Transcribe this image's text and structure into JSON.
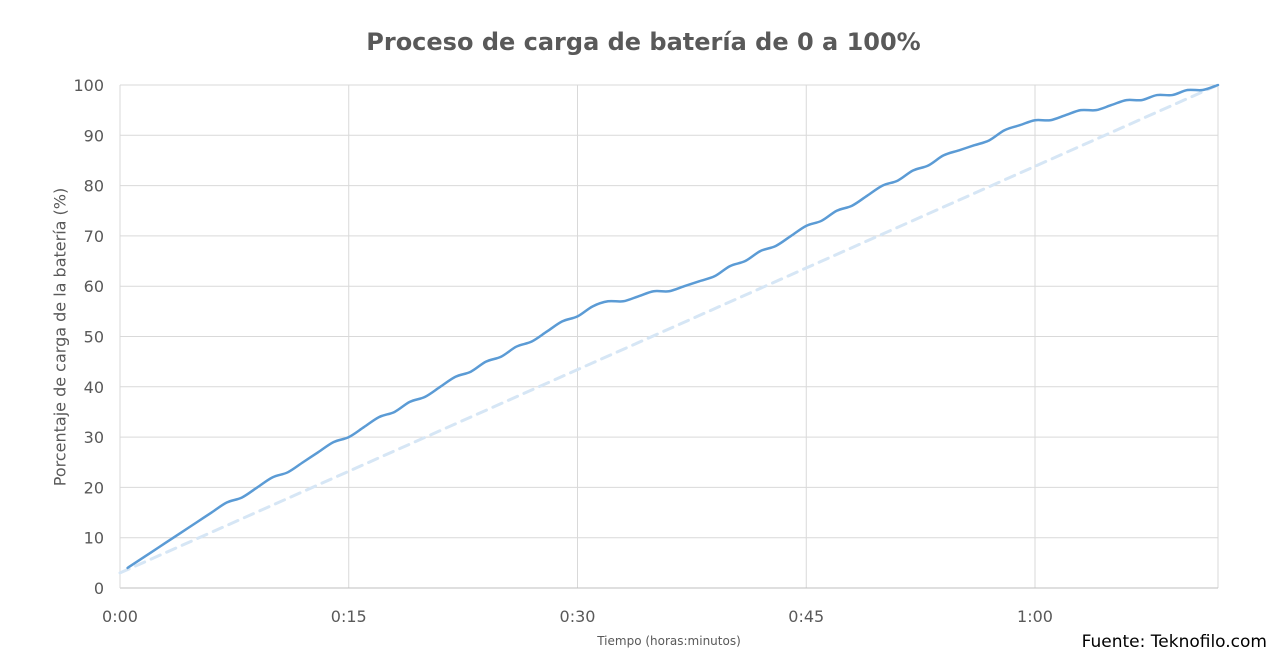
{
  "chart_data": {
    "type": "line",
    "title": "Proceso de carga de batería de 0 a 100%",
    "xlabel": "Tiempo (horas:minutos)",
    "ylabel": "Porcentaje de carga de la batería (%)",
    "x_unit": "minutes",
    "xlim": [
      0,
      72
    ],
    "ylim": [
      0,
      100
    ],
    "x_ticks": [
      {
        "value": 0,
        "label": "0:00"
      },
      {
        "value": 15,
        "label": "0:15"
      },
      {
        "value": 30,
        "label": "0:30"
      },
      {
        "value": 45,
        "label": "0:45"
      },
      {
        "value": 60,
        "label": "1:00"
      }
    ],
    "y_ticks": [
      0,
      10,
      20,
      30,
      40,
      50,
      60,
      70,
      80,
      90,
      100
    ],
    "grid": true,
    "series": [
      {
        "role": "measured",
        "color": "#5b9bd5",
        "style": "solid",
        "x": [
          0.5,
          1,
          2,
          3,
          4,
          5,
          6,
          7,
          8,
          9,
          10,
          11,
          12,
          13,
          14,
          15,
          16,
          17,
          18,
          19,
          20,
          21,
          22,
          23,
          24,
          25,
          26,
          27,
          28,
          29,
          30,
          31,
          32,
          33,
          34,
          35,
          36,
          37,
          38,
          39,
          40,
          41,
          42,
          43,
          44,
          45,
          46,
          47,
          48,
          49,
          50,
          51,
          52,
          53,
          54,
          55,
          56,
          57,
          58,
          59,
          60,
          61,
          62,
          63,
          64,
          65,
          66,
          67,
          68,
          69,
          70,
          71,
          72
        ],
        "y": [
          4,
          5,
          7,
          9,
          11,
          13,
          15,
          17,
          18,
          20,
          22,
          23,
          25,
          27,
          29,
          30,
          32,
          34,
          35,
          37,
          38,
          40,
          42,
          43,
          45,
          46,
          48,
          49,
          51,
          53,
          54,
          56,
          57,
          57,
          58,
          59,
          59,
          60,
          61,
          62,
          64,
          65,
          67,
          68,
          70,
          72,
          73,
          75,
          76,
          78,
          80,
          81,
          83,
          84,
          86,
          87,
          88,
          89,
          91,
          92,
          93,
          93,
          94,
          95,
          95,
          96,
          97,
          97,
          98,
          98,
          99,
          99,
          100
        ]
      },
      {
        "role": "linear-reference",
        "color": "#d6e6f5",
        "style": "dashed",
        "x": [
          0,
          72
        ],
        "y": [
          3,
          100
        ]
      }
    ]
  },
  "source": "Fuente: Teknofilo.com"
}
